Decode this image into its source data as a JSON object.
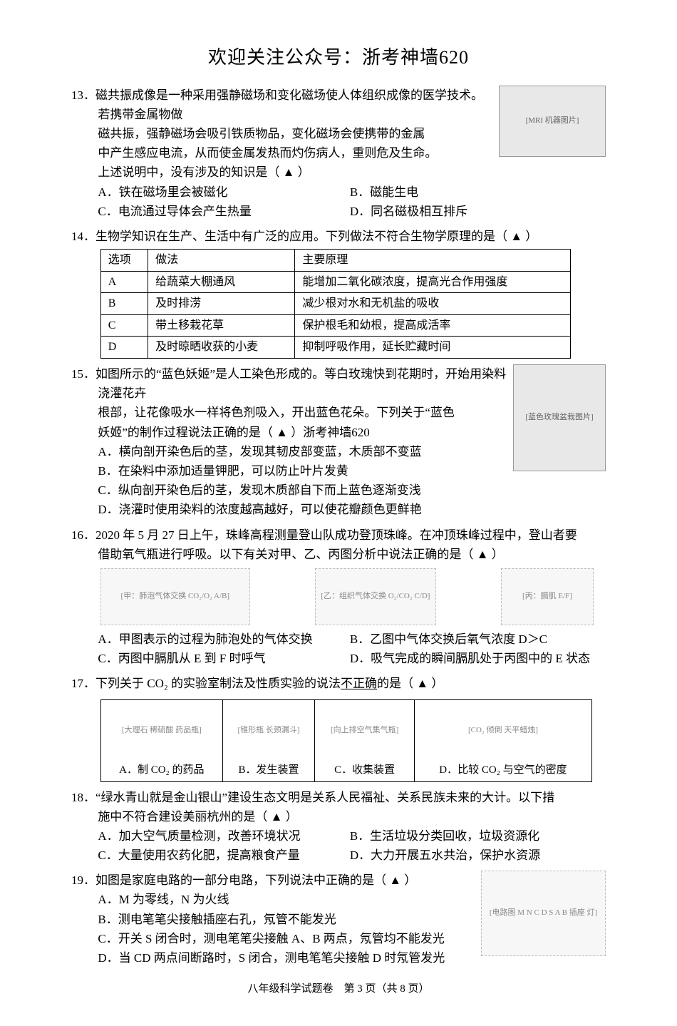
{
  "header": {
    "title": "欢迎关注公众号：浙考神墙620"
  },
  "blank_marker": "（ ▲ ）",
  "q13": {
    "num": "13．",
    "stem_lines": [
      "磁共振成像是一种采用强静磁场和变化磁场使人体组织成像的医学技术。若携带金属物做",
      "磁共振，强静磁场会吸引铁质物品，变化磁场会使携带的金属",
      "中产生感应电流，从而使金属发热而灼伤病人，重则危及生命。",
      "上述说明中，没有涉及的知识是"
    ],
    "options": {
      "A": "A．铁在磁场里会被磁化",
      "B": "B．磁能生电",
      "C": "C．电流通过导体会产生热量",
      "D": "D．同名磁极相互排斥"
    },
    "img_alt": "[MRI 机器图片]"
  },
  "q14": {
    "num": "14．",
    "stem": "生物学知识在生产、生活中有广泛的应用。下列做法不符合生物学原理的是",
    "table": {
      "headers": [
        "选项",
        "做法",
        "主要原理"
      ],
      "rows": [
        [
          "A",
          "给蔬菜大棚通风",
          "能增加二氧化碳浓度，提高光合作用强度"
        ],
        [
          "B",
          "及时排涝",
          "减少根对水和无机盐的吸收"
        ],
        [
          "C",
          "带土移栽花草",
          "保护根毛和幼根，提高成活率"
        ],
        [
          "D",
          "及时晾晒收获的小麦",
          "抑制呼吸作用，延长贮藏时间"
        ]
      ]
    }
  },
  "q15": {
    "num": "15．",
    "stem_lines": [
      "如图所示的“蓝色妖姬”是人工染色形成的。等白玫瑰快到花期时，开始用染料浇灌花卉",
      "根部，让花像吸水一样将色剂吸入，开出蓝色花朵。下列关于“蓝色",
      "妖姬”的制作过程说法正确的是"
    ],
    "watermark": "浙考神墙620",
    "options": {
      "A": "A．横向剖开染色后的茎，发现其韧皮部变蓝，木质部不变蓝",
      "B": "B．在染料中添加适量钾肥，可以防止叶片发黄",
      "C": "C．纵向剖开染色后的茎，发现木质部自下而上蓝色逐渐变浅",
      "D": "D．浇灌时使用染料的浓度越高越好，可以使花瓣颜色更鲜艳"
    },
    "img_alt": "[蓝色玫瑰盆栽图片]"
  },
  "q16": {
    "num": "16．",
    "stem_lines": [
      "2020 年 5 月 27 日上午，珠峰高程测量登山队成功登顶珠峰。在冲顶珠峰过程中，登山者要",
      "借助氧气瓶进行呼吸。以下有关对甲、乙、丙图分析中说法正确的是"
    ],
    "diagrams": {
      "d1": "[甲：肺泡气体交换 CO₂/O₂ A/B]",
      "d2": "[乙：组织气体交换 O₂/CO₂ C/D]",
      "d3": "[丙：膈肌 E/F]"
    },
    "options": {
      "A": "A．甲图表示的过程为肺泡处的气体交换",
      "B": "B．乙图中气体交换后氧气浓度 D＞C",
      "C": "C．丙图中膈肌从 E 到 F 时呼气",
      "D": "D．吸气完成的瞬间膈肌处于丙图中的 E 状态"
    }
  },
  "q17": {
    "num": "17．",
    "stem": "下列关于 CO₂ 的实验室制法及性质实验的说法",
    "stem_not": "不正确",
    "stem_tail": "的是",
    "cells": [
      {
        "img": "[大理石 稀硫酸 药品瓶]",
        "label": "A．制 CO₂ 的药品"
      },
      {
        "img": "[锥形瓶 长颈漏斗]",
        "label": "B．发生装置"
      },
      {
        "img": "[向上排空气集气瓶]",
        "label": "C．收集装置"
      },
      {
        "img": "[CO₂ 倾倒 天平蜡烛]",
        "label": "D．比较 CO₂ 与空气的密度"
      }
    ]
  },
  "q18": {
    "num": "18．",
    "stem_lines": [
      "“绿水青山就是金山银山”建设生态文明是关系人民福祉、关系民族未来的大计。以下措",
      "施中不符合建设美丽杭州的是"
    ],
    "options": {
      "A": "A．加大空气质量检测，改善环境状况",
      "B": "B．生活垃圾分类回收，垃圾资源化",
      "C": "C．大量使用农药化肥，提高粮食产量",
      "D": "D．大力开展五水共治，保护水资源"
    }
  },
  "q19": {
    "num": "19．",
    "stem": "如图是家庭电路的一部分电路，下列说法中正确的是",
    "options": {
      "A": "A．M 为零线，N 为火线",
      "B": "B．测电笔笔尖接触插座右孔，氖管不能发光",
      "C": "C．开关 S 闭合时，测电笔笔尖接触 A、B 两点，氖管均不能发光",
      "D": "D．当 CD 两点间断路时，S 闭合，测电笔笔尖接触 D 时氖管发光"
    },
    "circuit_alt": "[电路图 M N C D S A B 插座 灯]"
  },
  "footer": {
    "prefix": "八年级科学试题卷　第 ",
    "page": "3",
    "suffix": " 页（共 8 页）"
  }
}
